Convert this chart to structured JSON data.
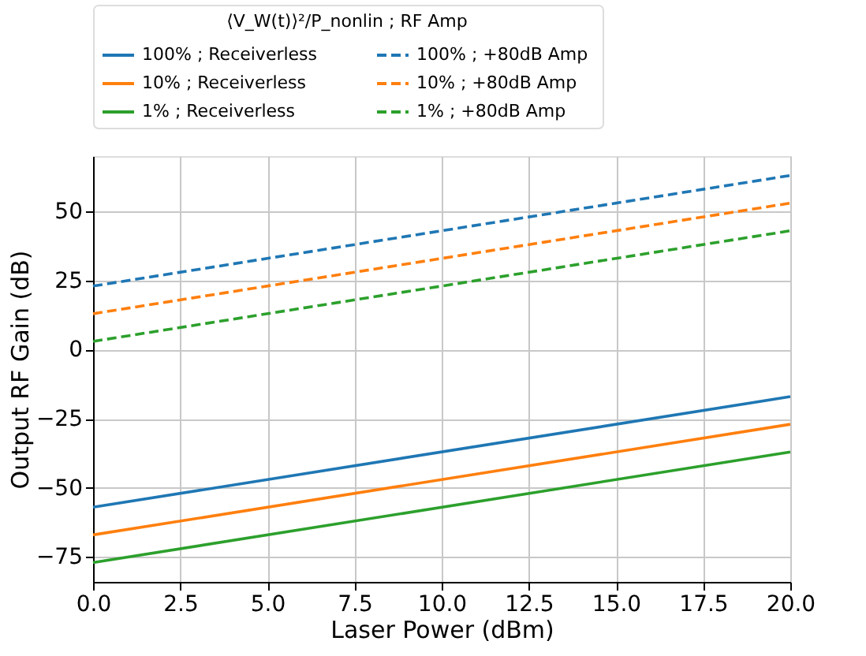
{
  "chart_data": {
    "type": "line",
    "xlabel": "Laser Power (dBm)",
    "ylabel": "Output RF Gain (dB)",
    "legend_title": "⟨V_W(t)⟩²/P_nonlin  ;  RF Amp",
    "x": [
      0,
      20
    ],
    "series": [
      {
        "name": "100%  ; Receiverless",
        "color": "#1f77b4",
        "line_style": "solid",
        "values": [
          -57,
          -17
        ]
      },
      {
        "name": "10%  ; Receiverless",
        "color": "#ff7f0e",
        "line_style": "solid",
        "values": [
          -67,
          -27
        ]
      },
      {
        "name": "1%  ; Receiverless",
        "color": "#2ca02c",
        "line_style": "solid",
        "values": [
          -77,
          -37
        ]
      },
      {
        "name": "100%  ; +80dB Amp",
        "color": "#1f77b4",
        "line_style": "dashed",
        "values": [
          23,
          63
        ]
      },
      {
        "name": "10%  ; +80dB Amp",
        "color": "#ff7f0e",
        "line_style": "dashed",
        "values": [
          13,
          53
        ]
      },
      {
        "name": "1%  ; +80dB Amp",
        "color": "#2ca02c",
        "line_style": "dashed",
        "values": [
          3,
          43
        ]
      }
    ],
    "xlim": [
      0,
      20
    ],
    "xticks": [
      {
        "value": 0,
        "label": "0.0"
      },
      {
        "value": 2.5,
        "label": "2.5"
      },
      {
        "value": 5,
        "label": "5.0"
      },
      {
        "value": 7.5,
        "label": "7.5"
      },
      {
        "value": 10,
        "label": "10.0"
      },
      {
        "value": 12.5,
        "label": "12.5"
      },
      {
        "value": 15,
        "label": "15.0"
      },
      {
        "value": 17.5,
        "label": "17.5"
      },
      {
        "value": 20,
        "label": "20.0"
      }
    ],
    "ylim": [
      -84,
      70
    ],
    "yticks": [
      -75,
      -50,
      -25,
      0,
      25,
      50
    ],
    "grid": true,
    "legend": "top",
    "marker": "none"
  }
}
